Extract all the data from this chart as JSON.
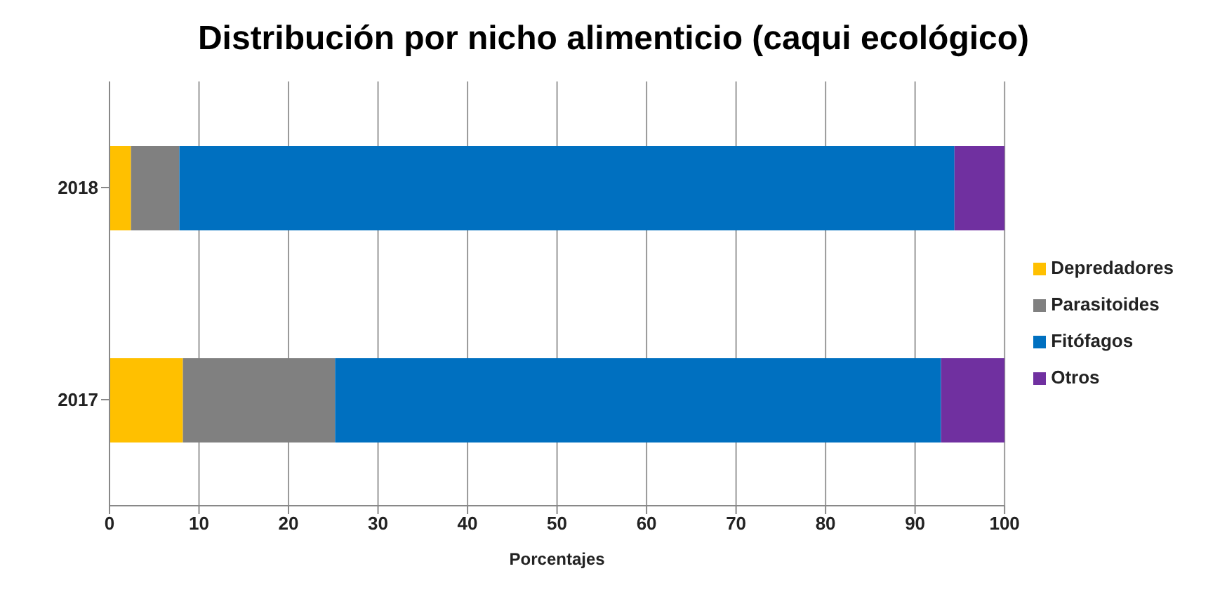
{
  "chart_data": {
    "type": "bar",
    "orientation": "horizontal",
    "stacked": true,
    "title": "Distribución por nicho alimenticio (caqui ecológico)",
    "xlabel": "Porcentajes",
    "categories": [
      "2018",
      "2017"
    ],
    "series": [
      {
        "name": "Depredadores",
        "color": "#ffc000",
        "values": [
          2.4,
          8.2
        ]
      },
      {
        "name": "Parasitoides",
        "color": "#808080",
        "values": [
          5.4,
          17.0
        ]
      },
      {
        "name": "Fitófagos",
        "color": "#0070c0",
        "values": [
          86.6,
          67.7
        ]
      },
      {
        "name": "Otros",
        "color": "#7030a0",
        "values": [
          5.6,
          7.1
        ]
      }
    ],
    "xlim": [
      0,
      100
    ],
    "xticks": [
      0,
      10,
      20,
      30,
      40,
      50,
      60,
      70,
      80,
      90,
      100
    ],
    "grid": "x",
    "legend": "right"
  }
}
